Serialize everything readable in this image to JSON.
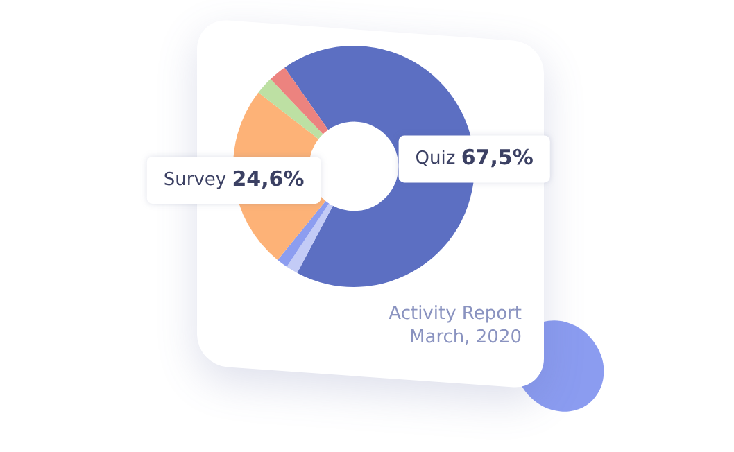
{
  "chart_data": {
    "type": "donut",
    "title": "Activity Report",
    "subtitle": "March, 2020",
    "categories": [
      "Quiz",
      null,
      null,
      "Survey",
      null,
      null
    ],
    "values": [
      67.5,
      1.6,
      1.5,
      24.6,
      2.4,
      2.4
    ],
    "colors": [
      "#5c6fc2",
      "#c3cbf6",
      "#8c9df0",
      "#fdb277",
      "#bde0a3",
      "#ec837f"
    ],
    "value_labels": [
      "67,5%",
      null,
      null,
      "24,6%",
      null,
      null
    ],
    "legend": false
  }
}
